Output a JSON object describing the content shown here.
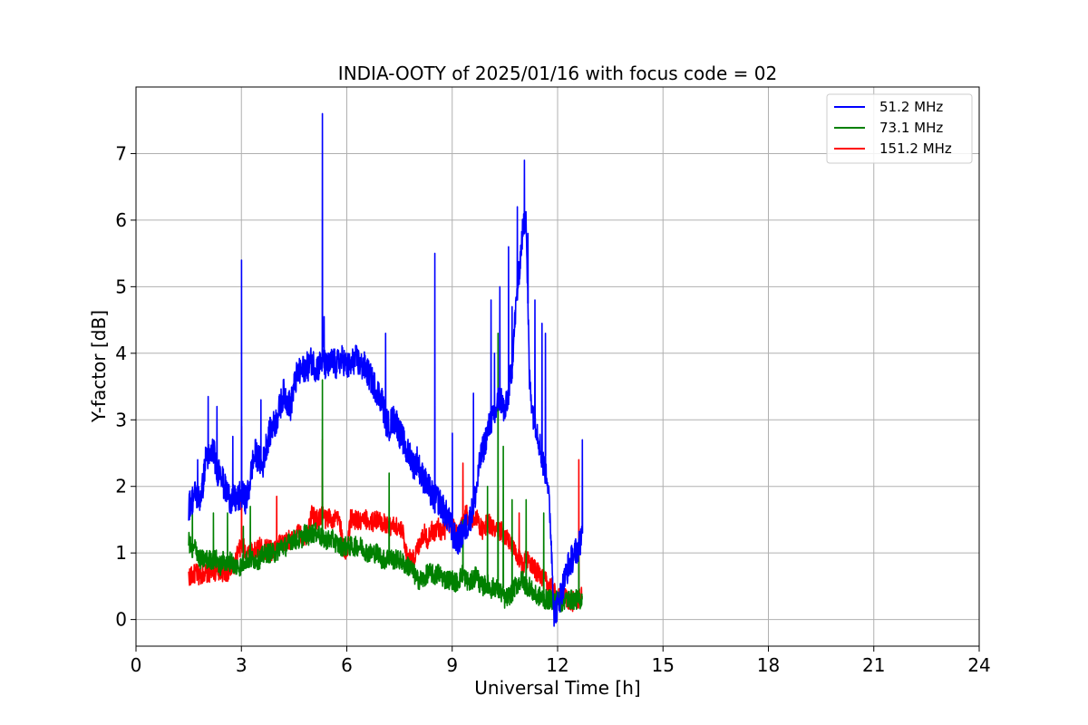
{
  "chart_data": {
    "type": "line",
    "title": "INDIA-OOTY of 2025/01/16 with focus code = 02",
    "xlabel": "Universal Time [h]",
    "ylabel": "Y-factor [dB]",
    "xlim": [
      0,
      24
    ],
    "ylim": [
      -0.4,
      8.0
    ],
    "xticks": [
      0,
      3,
      6,
      9,
      12,
      15,
      18,
      21,
      24
    ],
    "yticks": [
      0,
      1,
      2,
      3,
      4,
      5,
      6,
      7
    ],
    "grid": true,
    "legend_position": "top-right",
    "series": [
      {
        "name": "51.2 MHz",
        "color": "#0000ff",
        "x": [
          1.5,
          1.6,
          1.7,
          1.8,
          1.9,
          2.0,
          2.1,
          2.2,
          2.3,
          2.4,
          2.5,
          2.6,
          2.7,
          2.8,
          2.9,
          3.0,
          3.1,
          3.2,
          3.3,
          3.4,
          3.5,
          3.6,
          3.7,
          3.8,
          3.9,
          4.0,
          4.1,
          4.2,
          4.3,
          4.4,
          4.5,
          4.6,
          4.7,
          4.8,
          4.9,
          5.0,
          5.1,
          5.2,
          5.3,
          5.4,
          5.5,
          5.6,
          5.7,
          5.8,
          5.9,
          6.0,
          6.1,
          6.2,
          6.3,
          6.4,
          6.5,
          6.6,
          6.7,
          6.8,
          6.9,
          7.0,
          7.1,
          7.2,
          7.3,
          7.4,
          7.5,
          7.6,
          7.7,
          7.8,
          7.9,
          8.0,
          8.1,
          8.2,
          8.3,
          8.4,
          8.5,
          8.6,
          8.7,
          8.8,
          8.9,
          9.0,
          9.1,
          9.2,
          9.3,
          9.4,
          9.5,
          9.6,
          9.7,
          9.8,
          9.9,
          10.0,
          10.1,
          10.2,
          10.3,
          10.4,
          10.5,
          10.6,
          10.7,
          10.8,
          10.9,
          11.0,
          11.1,
          11.2,
          11.3,
          11.4,
          11.5,
          11.6,
          11.7,
          11.8,
          11.9,
          12.0,
          12.1,
          12.2,
          12.3,
          12.4,
          12.5,
          12.6,
          12.7
        ],
        "values": [
          1.7,
          1.8,
          1.9,
          1.8,
          2.0,
          2.5,
          2.4,
          2.6,
          2.2,
          2.3,
          2.0,
          1.9,
          1.8,
          1.8,
          1.8,
          1.9,
          1.8,
          1.9,
          2.3,
          2.5,
          2.4,
          2.3,
          2.6,
          2.8,
          2.9,
          3.0,
          3.2,
          3.4,
          3.3,
          3.2,
          3.5,
          3.7,
          3.7,
          3.8,
          3.8,
          3.9,
          3.8,
          3.8,
          3.9,
          3.8,
          3.8,
          3.9,
          3.8,
          3.9,
          3.9,
          3.8,
          3.8,
          3.9,
          3.9,
          3.8,
          3.8,
          3.7,
          3.6,
          3.5,
          3.4,
          3.3,
          3.0,
          2.9,
          3.0,
          3.0,
          2.8,
          2.7,
          2.5,
          2.5,
          2.3,
          2.4,
          2.2,
          2.1,
          2.0,
          1.9,
          1.8,
          1.8,
          1.7,
          1.6,
          1.5,
          1.3,
          1.2,
          1.2,
          1.3,
          1.4,
          1.5,
          1.7,
          2.0,
          2.4,
          2.6,
          2.8,
          3.0,
          3.0,
          3.3,
          3.3,
          3.1,
          3.4,
          3.8,
          4.6,
          5.2,
          5.8,
          6.1,
          3.6,
          3.1,
          2.9,
          2.6,
          2.3,
          2.2,
          1.4,
          0.1,
          0.2,
          0.4,
          0.6,
          0.8,
          0.9,
          1.0,
          1.1,
          1.3
        ],
        "spikes": [
          [
            1.75,
            2.4
          ],
          [
            2.05,
            3.35
          ],
          [
            2.3,
            3.2
          ],
          [
            2.75,
            2.75
          ],
          [
            3.0,
            5.4
          ],
          [
            3.55,
            3.3
          ],
          [
            5.3,
            7.6
          ],
          [
            5.35,
            4.55
          ],
          [
            7.1,
            4.3
          ],
          [
            8.5,
            5.5
          ],
          [
            9.0,
            2.8
          ],
          [
            9.6,
            3.4
          ],
          [
            10.1,
            4.8
          ],
          [
            10.2,
            4.0
          ],
          [
            10.35,
            5.0
          ],
          [
            10.6,
            5.6
          ],
          [
            10.7,
            4.7
          ],
          [
            10.85,
            6.2
          ],
          [
            11.05,
            6.9
          ],
          [
            11.15,
            5.8
          ],
          [
            11.35,
            4.8
          ],
          [
            11.55,
            4.45
          ],
          [
            11.65,
            4.3
          ],
          [
            12.7,
            2.7
          ]
        ]
      },
      {
        "name": "73.1 MHz",
        "color": "#008000",
        "x": [
          1.5,
          1.6,
          1.7,
          1.8,
          1.9,
          2.0,
          2.1,
          2.2,
          2.3,
          2.4,
          2.5,
          2.6,
          2.7,
          2.8,
          2.9,
          3.0,
          3.1,
          3.2,
          3.3,
          3.4,
          3.5,
          3.6,
          3.7,
          3.8,
          3.9,
          4.0,
          4.1,
          4.2,
          4.3,
          4.4,
          4.5,
          4.6,
          4.7,
          4.8,
          4.9,
          5.0,
          5.1,
          5.2,
          5.3,
          5.4,
          5.5,
          5.6,
          5.7,
          5.8,
          5.9,
          6.0,
          6.1,
          6.2,
          6.3,
          6.4,
          6.5,
          6.6,
          6.7,
          6.8,
          6.9,
          7.0,
          7.1,
          7.2,
          7.3,
          7.4,
          7.5,
          7.6,
          7.7,
          7.8,
          7.9,
          8.0,
          8.1,
          8.2,
          8.3,
          8.4,
          8.5,
          8.6,
          8.7,
          8.8,
          8.9,
          9.0,
          9.1,
          9.2,
          9.3,
          9.4,
          9.5,
          9.6,
          9.7,
          9.8,
          9.9,
          10.0,
          10.1,
          10.2,
          10.3,
          10.4,
          10.5,
          10.6,
          10.7,
          10.8,
          10.9,
          11.0,
          11.1,
          11.2,
          11.3,
          11.4,
          11.5,
          11.6,
          11.7,
          11.8,
          11.9,
          12.0,
          12.1,
          12.2,
          12.3,
          12.4,
          12.5,
          12.6,
          12.7
        ],
        "values": [
          1.2,
          1.0,
          1.1,
          0.9,
          0.9,
          0.9,
          0.9,
          0.9,
          0.9,
          0.8,
          0.9,
          0.8,
          0.9,
          0.8,
          0.8,
          0.8,
          0.9,
          0.9,
          0.9,
          0.9,
          0.9,
          0.95,
          1.0,
          1.0,
          1.0,
          1.0,
          1.1,
          1.1,
          1.1,
          1.2,
          1.2,
          1.2,
          1.2,
          1.3,
          1.25,
          1.3,
          1.3,
          1.3,
          1.2,
          1.2,
          1.2,
          1.2,
          1.15,
          1.1,
          1.1,
          1.1,
          1.1,
          1.1,
          1.1,
          1.1,
          1.05,
          1.0,
          1.0,
          1.0,
          1.0,
          0.9,
          0.9,
          0.95,
          0.9,
          0.9,
          0.9,
          0.85,
          0.8,
          0.8,
          0.7,
          0.6,
          0.6,
          0.6,
          0.7,
          0.7,
          0.65,
          0.7,
          0.65,
          0.6,
          0.6,
          0.6,
          0.55,
          0.6,
          0.7,
          0.6,
          0.55,
          0.6,
          0.7,
          0.5,
          0.5,
          0.55,
          0.45,
          0.5,
          0.45,
          0.4,
          0.3,
          0.35,
          0.4,
          0.5,
          0.55,
          0.6,
          0.5,
          0.5,
          0.4,
          0.35,
          0.35,
          0.3,
          0.3,
          0.3,
          0.3,
          0.3,
          0.25,
          0.3,
          0.3,
          0.3,
          0.3,
          0.3,
          0.3
        ],
        "spikes": [
          [
            1.6,
            1.7
          ],
          [
            2.2,
            1.6
          ],
          [
            2.6,
            1.6
          ],
          [
            3.05,
            1.4
          ],
          [
            3.25,
            1.7
          ],
          [
            5.3,
            3.6
          ],
          [
            7.2,
            2.2
          ],
          [
            9.3,
            1.5
          ],
          [
            10.0,
            2.0
          ],
          [
            10.3,
            4.3
          ],
          [
            10.45,
            2.6
          ],
          [
            10.7,
            1.8
          ],
          [
            11.1,
            1.8
          ],
          [
            11.6,
            1.6
          ],
          [
            12.6,
            1.0
          ]
        ]
      },
      {
        "name": "151.2 MHz",
        "color": "#ff0000",
        "x": [
          1.5,
          1.6,
          1.7,
          1.8,
          1.9,
          2.0,
          2.1,
          2.2,
          2.3,
          2.4,
          2.5,
          2.6,
          2.7,
          2.8,
          2.9,
          3.0,
          3.1,
          3.2,
          3.3,
          3.4,
          3.5,
          3.6,
          3.7,
          3.8,
          3.9,
          4.0,
          4.1,
          4.2,
          4.3,
          4.4,
          4.5,
          4.6,
          4.7,
          4.8,
          4.9,
          5.0,
          5.1,
          5.2,
          5.3,
          5.4,
          5.5,
          5.6,
          5.7,
          5.8,
          5.9,
          6.0,
          6.1,
          6.2,
          6.3,
          6.4,
          6.5,
          6.6,
          6.7,
          6.8,
          6.9,
          7.0,
          7.1,
          7.2,
          7.3,
          7.4,
          7.5,
          7.6,
          7.7,
          7.8,
          7.9,
          8.0,
          8.1,
          8.2,
          8.3,
          8.4,
          8.5,
          8.6,
          8.7,
          8.8,
          8.9,
          9.0,
          9.1,
          9.2,
          9.3,
          9.4,
          9.5,
          9.6,
          9.7,
          9.8,
          9.9,
          10.0,
          10.1,
          10.2,
          10.3,
          10.4,
          10.5,
          10.6,
          10.7,
          10.8,
          10.9,
          11.0,
          11.1,
          11.2,
          11.3,
          11.4,
          11.5,
          11.6,
          11.7,
          11.8,
          11.9,
          12.0,
          12.1,
          12.2,
          12.3,
          12.4,
          12.5,
          12.6,
          12.7
        ],
        "values": [
          0.65,
          0.65,
          0.7,
          0.65,
          0.7,
          0.7,
          0.7,
          0.75,
          0.7,
          0.75,
          0.7,
          0.7,
          0.75,
          0.8,
          1.0,
          1.1,
          1.05,
          1.0,
          1.05,
          1.0,
          1.1,
          1.05,
          1.05,
          1.1,
          1.0,
          1.1,
          1.15,
          1.1,
          1.2,
          1.2,
          1.15,
          1.3,
          1.25,
          1.25,
          1.3,
          1.6,
          1.5,
          1.5,
          1.6,
          1.5,
          1.55,
          1.5,
          1.5,
          1.5,
          1.05,
          1.0,
          1.5,
          1.5,
          1.5,
          1.45,
          1.5,
          1.5,
          1.45,
          1.5,
          1.5,
          1.45,
          1.45,
          1.4,
          1.4,
          1.4,
          1.35,
          1.3,
          1.0,
          0.9,
          0.9,
          1.05,
          1.2,
          1.3,
          1.2,
          1.35,
          1.3,
          1.4,
          1.3,
          1.35,
          1.4,
          1.45,
          1.3,
          1.3,
          1.5,
          1.6,
          1.5,
          1.5,
          1.55,
          1.4,
          1.3,
          1.5,
          1.4,
          1.35,
          1.3,
          1.35,
          1.2,
          1.2,
          1.1,
          1.0,
          0.9,
          0.8,
          0.9,
          0.9,
          0.8,
          0.7,
          0.7,
          0.6,
          0.55,
          0.5,
          0.4,
          0.35,
          0.3,
          0.35,
          0.3,
          0.25,
          0.3,
          0.3,
          0.35
        ],
        "spikes": [
          [
            3.0,
            2.9
          ],
          [
            4.0,
            1.85
          ],
          [
            5.3,
            2.7
          ],
          [
            9.3,
            2.35
          ],
          [
            10.3,
            2.0
          ],
          [
            10.9,
            1.6
          ],
          [
            12.6,
            2.4
          ]
        ]
      }
    ]
  }
}
